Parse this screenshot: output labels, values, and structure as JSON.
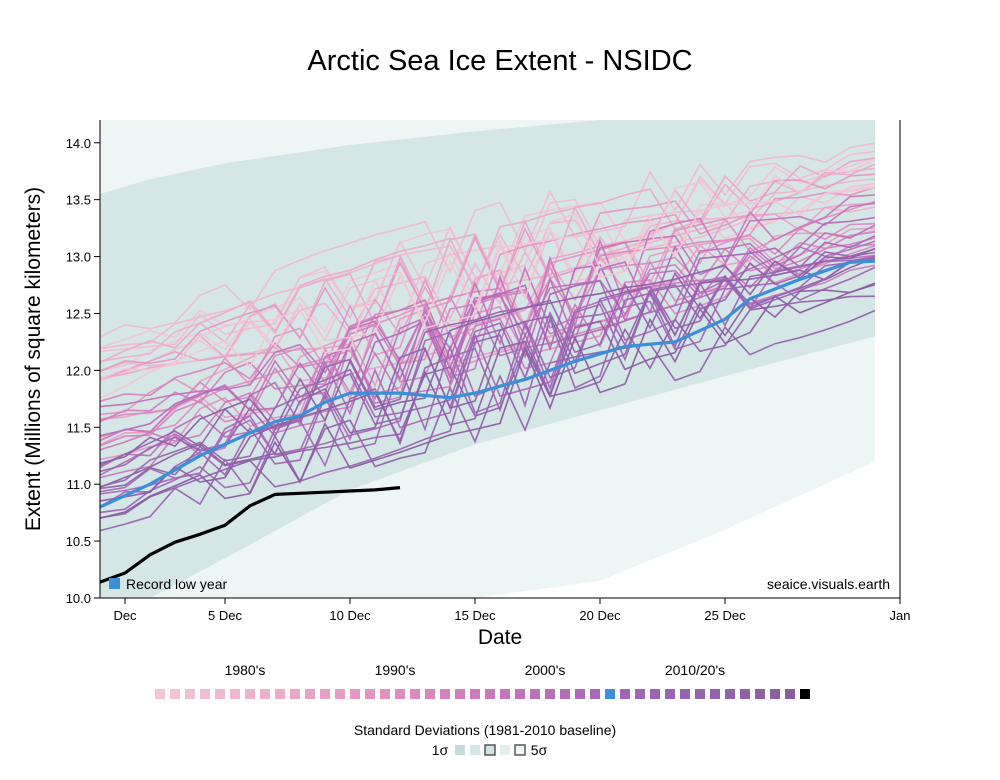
{
  "chart_data": {
    "type": "line",
    "title": "Arctic Sea Ice Extent - NSIDC",
    "xlabel": "Date",
    "ylabel": "Extent (Millions of square kilometers)",
    "x_axis": {
      "start": "2023-11-30",
      "end": "2024-01-01",
      "tick_dates": [
        "2023-12-01",
        "2023-12-05",
        "2023-12-10",
        "2023-12-15",
        "2023-12-20",
        "2023-12-25",
        "2024-01-01"
      ],
      "tick_labels": [
        "Dec",
        "5 Dec",
        "10 Dec",
        "15 Dec",
        "20 Dec",
        "25 Dec",
        "Jan"
      ]
    },
    "ylim": [
      10.0,
      14.2
    ],
    "y_ticks": [
      "10.0",
      "10.5",
      "11.0",
      "11.5",
      "12.0",
      "12.5",
      "13.0",
      "13.5",
      "14.0"
    ],
    "annotations": {
      "record_low_label": "Record low year",
      "source": "seaice.visuals.earth"
    },
    "std_band_2sigma": {
      "dates": [
        "2023-11-30",
        "2023-12-02",
        "2023-12-05",
        "2023-12-10",
        "2023-12-15",
        "2023-12-20",
        "2023-12-25",
        "2023-12-31"
      ],
      "upper": [
        14.2,
        14.2,
        14.2,
        14.2,
        14.2,
        14.2,
        14.2,
        14.2
      ],
      "lower": [
        10.0,
        10.0,
        10.0,
        10.0,
        10.0,
        10.15,
        10.6,
        11.2
      ]
    },
    "std_band_1sigma": {
      "dates": [
        "2023-11-30",
        "2023-12-02",
        "2023-12-05",
        "2023-12-10",
        "2023-12-15",
        "2023-12-20",
        "2023-12-25",
        "2023-12-31"
      ],
      "upper": [
        13.55,
        13.68,
        13.82,
        13.98,
        14.1,
        14.2,
        14.2,
        14.2
      ],
      "lower": [
        10.0,
        10.0,
        10.35,
        10.95,
        11.35,
        11.65,
        11.95,
        12.3
      ]
    },
    "series_highlight": [
      {
        "role": "record_low",
        "color": "#3a8fd8",
        "dates": [
          "2023-11-30",
          "2023-12-02",
          "2023-12-04",
          "2023-12-06",
          "2023-12-07",
          "2023-12-08",
          "2023-12-09",
          "2023-12-10",
          "2023-12-12",
          "2023-12-14",
          "2023-12-15",
          "2023-12-17",
          "2023-12-19",
          "2023-12-21",
          "2023-12-23",
          "2023-12-25",
          "2023-12-26",
          "2023-12-28",
          "2023-12-30",
          "2023-12-31"
        ],
        "values": [
          10.8,
          11.0,
          11.25,
          11.45,
          11.55,
          11.6,
          11.72,
          11.8,
          11.8,
          11.76,
          11.8,
          11.92,
          12.08,
          12.21,
          12.25,
          12.45,
          12.63,
          12.8,
          12.95,
          12.96
        ]
      },
      {
        "role": "current",
        "color": "#000000",
        "dates": [
          "2023-11-30",
          "2023-12-01",
          "2023-12-02",
          "2023-12-03",
          "2023-12-04",
          "2023-12-05",
          "2023-12-06",
          "2023-12-07",
          "2023-12-08",
          "2023-12-09",
          "2023-12-10",
          "2023-12-11",
          "2023-12-12"
        ],
        "values": [
          10.14,
          10.22,
          10.38,
          10.49,
          10.56,
          10.64,
          10.81,
          10.91,
          10.92,
          10.93,
          10.94,
          10.95,
          10.97
        ]
      }
    ],
    "background_lines": {
      "count": 44,
      "start_range": [
        10.15,
        12.65
      ],
      "end_range": [
        12.3,
        14.2
      ],
      "colors_from": "legend.decade_swatches"
    }
  },
  "legend": {
    "decade_labels": [
      "1980's",
      "1990's",
      "2000's",
      "2010/20's"
    ],
    "decade_swatches": [
      "#f3c6d6",
      "#f3c4d5",
      "#f2c0d3",
      "#f2bdd2",
      "#f1b9d0",
      "#f0b6cf",
      "#efb2cd",
      "#efaecc",
      "#eeaacb",
      "#eda6c9",
      "#eba2c8",
      "#ea9ec6",
      "#e89bc5",
      "#e697c4",
      "#e494c3",
      "#e290c2",
      "#df8cc1",
      "#dc89c0",
      "#d985bf",
      "#d582bf",
      "#d27ebe",
      "#ce7bbd",
      "#ca78bd",
      "#c675bc",
      "#c272bb",
      "#bd70ba",
      "#b96dba",
      "#b46bb9",
      "#af69b8",
      "#aa67b7",
      "#3a8fd8",
      "#a266b6",
      "#a065b5",
      "#9d65b4",
      "#9a64b2",
      "#9864b1",
      "#9663af",
      "#9463ad",
      "#9262ab",
      "#9061a9",
      "#8e60a6",
      "#8c5fa4",
      "#8a5da2",
      "#000000"
    ],
    "std_title": "Standard Deviations (1981-2010 baseline)",
    "std_left_label": "1σ",
    "std_right_label": "5σ",
    "std_swatch_colors": [
      "#c3dcdc",
      "#d3e7e6",
      "#cfe4e2",
      "#e3f0ef",
      "#f1f7f7"
    ]
  },
  "colors": {
    "sigma1_fill": "#d4e6e5",
    "sigma2_fill": "#eef5f5",
    "axis": "#000000"
  }
}
